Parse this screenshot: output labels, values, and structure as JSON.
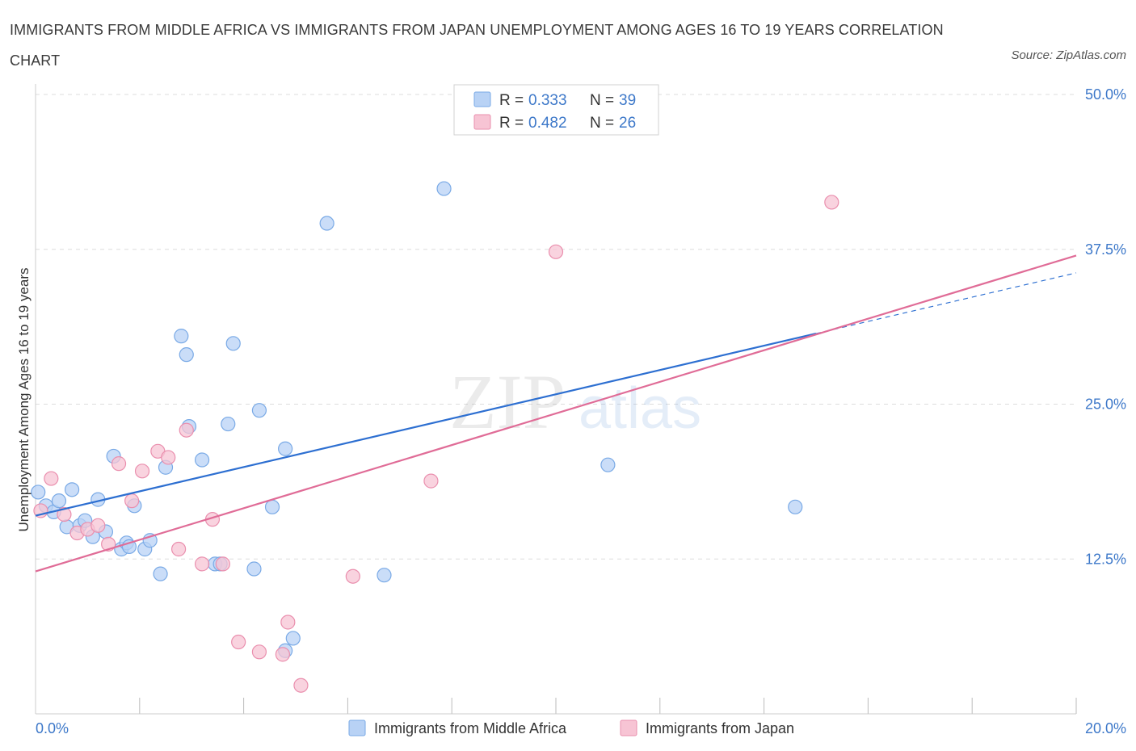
{
  "title": "IMMIGRANTS FROM MIDDLE AFRICA VS IMMIGRANTS FROM JAPAN UNEMPLOYMENT AMONG AGES 16 TO 19 YEARS CORRELATION CHART",
  "source": "Source: ZipAtlas.com",
  "watermark": {
    "zip": "ZIP",
    "atlas": "atlas"
  },
  "legend": {
    "r_label": "R =",
    "n_label": "N =",
    "items": [
      {
        "r": "0.333",
        "n": "39"
      },
      {
        "r": "0.482",
        "n": "26"
      }
    ]
  },
  "bottom_legend": [
    "Immigrants from Middle Africa",
    "Immigrants from Japan"
  ],
  "colors": {
    "blue_fill": "#b8d2f5",
    "blue_stroke": "#7aaae6",
    "blue_line": "#2d6fd1",
    "pink_fill": "#f7c4d4",
    "pink_stroke": "#ea8fae",
    "pink_line": "#e06c97",
    "tick_text": "#3d78c9",
    "grid": "#dddddd"
  },
  "chart_data": {
    "type": "scatter",
    "title": "IMMIGRANTS FROM MIDDLE AFRICA VS IMMIGRANTS FROM JAPAN UNEMPLOYMENT AMONG AGES 16 TO 19 YEARS CORRELATION CHART",
    "xlabel": "",
    "ylabel": "Unemployment Among Ages 16 to 19 years",
    "xlim": [
      0,
      20
    ],
    "ylim": [
      0,
      50
    ],
    "x_tick_labels": [
      "0.0%",
      "20.0%"
    ],
    "y_ticks": [
      12.5,
      25.0,
      37.5,
      50.0
    ],
    "y_tick_labels": [
      "12.5%",
      "25.0%",
      "37.5%",
      "50.0%"
    ],
    "grid": true,
    "legend_position": "top-center",
    "series": [
      {
        "name": "Immigrants from Middle Africa",
        "R": 0.333,
        "N": 39,
        "points": [
          [
            0.05,
            17.9
          ],
          [
            0.2,
            16.8
          ],
          [
            0.35,
            16.3
          ],
          [
            0.45,
            17.2
          ],
          [
            0.6,
            15.1
          ],
          [
            0.7,
            18.1
          ],
          [
            0.85,
            15.2
          ],
          [
            0.95,
            15.6
          ],
          [
            1.1,
            14.3
          ],
          [
            1.2,
            17.3
          ],
          [
            1.35,
            14.7
          ],
          [
            1.5,
            20.8
          ],
          [
            1.65,
            13.3
          ],
          [
            1.75,
            13.8
          ],
          [
            1.8,
            13.5
          ],
          [
            1.9,
            16.8
          ],
          [
            2.1,
            13.3
          ],
          [
            2.2,
            14.0
          ],
          [
            2.4,
            11.3
          ],
          [
            2.5,
            19.9
          ],
          [
            2.8,
            30.5
          ],
          [
            2.9,
            29.0
          ],
          [
            2.95,
            23.2
          ],
          [
            3.2,
            20.5
          ],
          [
            3.45,
            12.1
          ],
          [
            3.55,
            12.1
          ],
          [
            3.7,
            23.4
          ],
          [
            3.8,
            29.9
          ],
          [
            4.2,
            11.7
          ],
          [
            4.3,
            24.5
          ],
          [
            4.55,
            16.7
          ],
          [
            4.8,
            21.4
          ],
          [
            4.8,
            5.1
          ],
          [
            4.95,
            6.1
          ],
          [
            5.6,
            39.6
          ],
          [
            6.7,
            11.2
          ],
          [
            7.85,
            42.4
          ],
          [
            11.0,
            20.1
          ],
          [
            14.6,
            16.7
          ]
        ],
        "trend": {
          "x": [
            0,
            15.0
          ],
          "y": [
            16.0,
            30.7
          ]
        }
      },
      {
        "name": "Immigrants from Japan",
        "R": 0.482,
        "N": 26,
        "points": [
          [
            0.1,
            16.4
          ],
          [
            0.3,
            19.0
          ],
          [
            0.55,
            16.1
          ],
          [
            0.8,
            14.6
          ],
          [
            1.0,
            14.9
          ],
          [
            1.2,
            15.2
          ],
          [
            1.4,
            13.7
          ],
          [
            1.6,
            20.2
          ],
          [
            1.85,
            17.2
          ],
          [
            2.05,
            19.6
          ],
          [
            2.35,
            21.2
          ],
          [
            2.55,
            20.7
          ],
          [
            2.75,
            13.3
          ],
          [
            2.9,
            22.9
          ],
          [
            3.2,
            12.1
          ],
          [
            3.4,
            15.7
          ],
          [
            3.6,
            12.1
          ],
          [
            3.9,
            5.8
          ],
          [
            4.3,
            5.0
          ],
          [
            4.75,
            4.8
          ],
          [
            4.85,
            7.4
          ],
          [
            5.1,
            2.3
          ],
          [
            6.1,
            11.1
          ],
          [
            7.6,
            18.8
          ],
          [
            10.0,
            37.3
          ],
          [
            15.3,
            41.3
          ]
        ],
        "trend": {
          "x": [
            0,
            20
          ],
          "y": [
            11.5,
            37.0
          ]
        }
      }
    ],
    "extension": {
      "x": [
        15.0,
        20.0
      ],
      "y": [
        30.7,
        35.6
      ]
    }
  }
}
